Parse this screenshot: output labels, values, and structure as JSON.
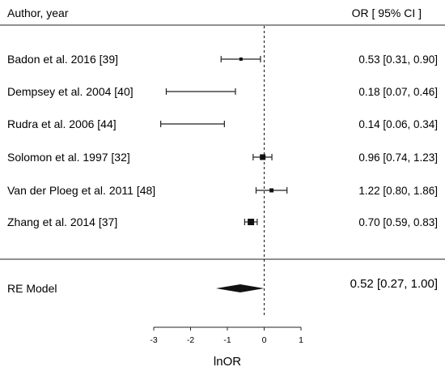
{
  "chart_data": {
    "type": "forest",
    "header_left": "Author, year",
    "header_right": "OR [ 95% CI ]",
    "xlabel": "lnOR",
    "xlim": [
      -3,
      1
    ],
    "xticks": [
      "-3",
      "-2",
      "-1",
      "0",
      "1"
    ],
    "reference_line": 0,
    "studies": [
      {
        "label": "Badon et al. 2016  [39]",
        "lnor": -0.63,
        "lo": -1.17,
        "hi": -0.1,
        "ci_text": "0.53 [0.31, 0.90]"
      },
      {
        "label": "Dempsey et al. 2004  [40]",
        "lnor": -1.71,
        "lo": -2.66,
        "hi": -0.78,
        "ci_text": "0.18 [0.07, 0.46]"
      },
      {
        "label": "Rudra et al. 2006  [44]",
        "lnor": -1.97,
        "lo": -2.81,
        "hi": -1.08,
        "ci_text": "0.14 [0.06, 0.34]"
      },
      {
        "label": "Solomon et al. 1997  [32]",
        "lnor": -0.04,
        "lo": -0.3,
        "hi": 0.21,
        "ci_text": "0.96 [0.74, 1.23]"
      },
      {
        "label": "Van der Ploeg et al. 2011  [48]",
        "lnor": 0.2,
        "lo": -0.22,
        "hi": 0.62,
        "ci_text": "1.22 [0.80, 1.86]"
      },
      {
        "label": "Zhang et al. 2014  [37]",
        "lnor": -0.36,
        "lo": -0.53,
        "hi": -0.19,
        "ci_text": "0.70 [0.59, 0.83]"
      }
    ],
    "summary": {
      "label": "RE Model",
      "lnor": -0.65,
      "lo": -1.31,
      "hi": 0.0,
      "ci_text": "0.52 [0.27, 1.00]"
    }
  }
}
